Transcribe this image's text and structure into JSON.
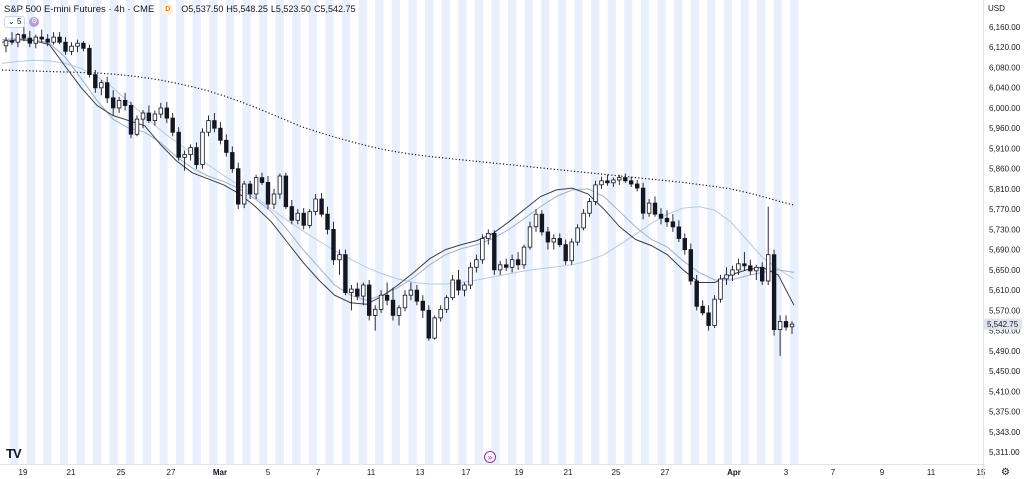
{
  "header": {
    "symbol": "S&P 500 E-mini Futures · 4h · CME",
    "exchange_badge": "D",
    "open": "O5,537.50",
    "high": "H5,548.25",
    "low": "L5,523.50",
    "close": "C5,542.75",
    "indicator_count": "5",
    "currency": "USD"
  },
  "colors": {
    "candle": "#131722",
    "session_band": "#e8f0fd",
    "ema_dark": "#3c3c46",
    "ema_light": "#9fb0cf",
    "ma_light": "#b7c8e8",
    "ma_dotted": "#131722",
    "price_label_bg": "#e0e3eb"
  },
  "chart_data": {
    "type": "candlestick",
    "title": "S&P 500 E-mini Futures · 4h · CME",
    "y_axis": {
      "ticks": [
        "6,160.00",
        "6,120.00",
        "6,080.00",
        "6,040.00",
        "6,000.00",
        "5,960.00",
        "5,910.00",
        "5,860.00",
        "5,810.00",
        "5,770.00",
        "5,730.00",
        "5,690.00",
        "5,650.00",
        "5,610.00",
        "5,570.00",
        "5,530.00",
        "5,490.00",
        "5,450.00",
        "5,410.00",
        "5,375.00",
        "5,343.00",
        "5,311.00"
      ],
      "tick_values": [
        6160,
        6120,
        6080,
        6040,
        6000,
        5960,
        5910,
        5860,
        5810,
        5770,
        5730,
        5690,
        5650,
        5610,
        5570,
        5530,
        5490,
        5450,
        5410,
        5375,
        5343,
        5311
      ],
      "current_price_label": "5,542.75",
      "current_price": 5542.75
    },
    "x_axis": {
      "labels": [
        "19",
        "21",
        "25",
        "27",
        "Mar",
        "5",
        "7",
        "11",
        "13",
        "17",
        "19",
        "21",
        "25",
        "27",
        "Apr",
        "3",
        "7",
        "9",
        "11",
        "15"
      ],
      "bold_labels": [
        "Mar",
        "Apr"
      ]
    },
    "candles": [
      [
        6123,
        6140,
        6110,
        6133
      ],
      [
        6133,
        6150,
        6125,
        6130
      ],
      [
        6130,
        6148,
        6120,
        6145
      ],
      [
        6145,
        6160,
        6132,
        6138
      ],
      [
        6138,
        6152,
        6120,
        6128
      ],
      [
        6128,
        6145,
        6118,
        6140
      ],
      [
        6140,
        6155,
        6130,
        6136
      ],
      [
        6136,
        6146,
        6122,
        6130
      ],
      [
        6130,
        6150,
        6125,
        6140
      ],
      [
        6140,
        6150,
        6126,
        6130
      ],
      [
        6130,
        6140,
        6105,
        6112
      ],
      [
        6112,
        6130,
        6104,
        6122
      ],
      [
        6122,
        6135,
        6110,
        6128
      ],
      [
        6128,
        6132,
        6112,
        6118
      ],
      [
        6118,
        6125,
        6060,
        6066
      ],
      [
        6066,
        6075,
        6030,
        6040
      ],
      [
        6040,
        6055,
        6025,
        6050
      ],
      [
        6050,
        6062,
        6010,
        6020
      ],
      [
        6020,
        6035,
        5985,
        6000
      ],
      [
        6000,
        6022,
        5990,
        6015
      ],
      [
        6015,
        6030,
        5995,
        6005
      ],
      [
        6005,
        6012,
        5935,
        5945
      ],
      [
        5945,
        5985,
        5940,
        5978
      ],
      [
        5978,
        5996,
        5960,
        5990
      ],
      [
        5990,
        6005,
        5970,
        5975
      ],
      [
        5975,
        5995,
        5965,
        5988
      ],
      [
        5988,
        6010,
        5980,
        6000
      ],
      [
        6000,
        6012,
        5970,
        5980
      ],
      [
        5980,
        5990,
        5940,
        5950
      ],
      [
        5950,
        5962,
        5880,
        5888
      ],
      [
        5888,
        5905,
        5855,
        5895
      ],
      [
        5895,
        5920,
        5880,
        5912
      ],
      [
        5912,
        5925,
        5860,
        5870
      ],
      [
        5870,
        5960,
        5860,
        5950
      ],
      [
        5950,
        5985,
        5940,
        5975
      ],
      [
        5975,
        5990,
        5950,
        5960
      ],
      [
        5960,
        5972,
        5920,
        5930
      ],
      [
        5930,
        5945,
        5890,
        5900
      ],
      [
        5900,
        5915,
        5850,
        5860
      ],
      [
        5860,
        5875,
        5770,
        5780
      ],
      [
        5780,
        5830,
        5772,
        5822
      ],
      [
        5822,
        5830,
        5790,
        5800
      ],
      [
        5800,
        5845,
        5790,
        5838
      ],
      [
        5838,
        5850,
        5820,
        5826
      ],
      [
        5826,
        5842,
        5770,
        5780
      ],
      [
        5780,
        5810,
        5770,
        5800
      ],
      [
        5800,
        5848,
        5790,
        5842
      ],
      [
        5842,
        5850,
        5770,
        5775
      ],
      [
        5775,
        5788,
        5740,
        5748
      ],
      [
        5748,
        5770,
        5740,
        5762
      ],
      [
        5762,
        5772,
        5730,
        5738
      ],
      [
        5738,
        5770,
        5732,
        5765
      ],
      [
        5765,
        5800,
        5758,
        5790
      ],
      [
        5790,
        5802,
        5755,
        5760
      ],
      [
        5760,
        5775,
        5720,
        5730
      ],
      [
        5730,
        5745,
        5660,
        5670
      ],
      [
        5670,
        5690,
        5640,
        5680
      ],
      [
        5680,
        5690,
        5600,
        5605
      ],
      [
        5605,
        5620,
        5570,
        5612
      ],
      [
        5612,
        5625,
        5590,
        5598
      ],
      [
        5598,
        5625,
        5580,
        5620
      ],
      [
        5620,
        5630,
        5550,
        5560
      ],
      [
        5560,
        5580,
        5530,
        5572
      ],
      [
        5572,
        5610,
        5565,
        5600
      ],
      [
        5600,
        5625,
        5580,
        5590
      ],
      [
        5590,
        5615,
        5550,
        5560
      ],
      [
        5560,
        5580,
        5540,
        5575
      ],
      [
        5575,
        5610,
        5568,
        5600
      ],
      [
        5600,
        5625,
        5590,
        5610
      ],
      [
        5610,
        5620,
        5580,
        5588
      ],
      [
        5588,
        5600,
        5555,
        5570
      ],
      [
        5570,
        5580,
        5510,
        5515
      ],
      [
        5515,
        5560,
        5512,
        5555
      ],
      [
        5555,
        5580,
        5548,
        5572
      ],
      [
        5572,
        5600,
        5565,
        5595
      ],
      [
        5595,
        5640,
        5590,
        5630
      ],
      [
        5630,
        5650,
        5600,
        5610
      ],
      [
        5610,
        5625,
        5598,
        5620
      ],
      [
        5620,
        5665,
        5612,
        5655
      ],
      [
        5655,
        5680,
        5645,
        5670
      ],
      [
        5670,
        5720,
        5662,
        5712
      ],
      [
        5712,
        5730,
        5700,
        5722
      ],
      [
        5722,
        5728,
        5640,
        5650
      ],
      [
        5650,
        5668,
        5640,
        5660
      ],
      [
        5660,
        5672,
        5648,
        5655
      ],
      [
        5655,
        5680,
        5645,
        5670
      ],
      [
        5670,
        5685,
        5650,
        5660
      ],
      [
        5660,
        5700,
        5652,
        5695
      ],
      [
        5695,
        5745,
        5690,
        5735
      ],
      [
        5735,
        5770,
        5725,
        5760
      ],
      [
        5760,
        5768,
        5718,
        5725
      ],
      [
        5725,
        5735,
        5690,
        5705
      ],
      [
        5705,
        5720,
        5690,
        5712
      ],
      [
        5712,
        5722,
        5695,
        5700
      ],
      [
        5700,
        5710,
        5660,
        5668
      ],
      [
        5668,
        5712,
        5660,
        5705
      ],
      [
        5705,
        5740,
        5698,
        5733
      ],
      [
        5733,
        5770,
        5728,
        5762
      ],
      [
        5762,
        5792,
        5755,
        5785
      ],
      [
        5785,
        5830,
        5778,
        5820
      ],
      [
        5820,
        5840,
        5810,
        5830
      ],
      [
        5830,
        5845,
        5818,
        5825
      ],
      [
        5825,
        5838,
        5815,
        5832
      ],
      [
        5832,
        5845,
        5820,
        5838
      ],
      [
        5838,
        5848,
        5825,
        5830
      ],
      [
        5830,
        5840,
        5815,
        5822
      ],
      [
        5822,
        5832,
        5805,
        5812
      ],
      [
        5812,
        5825,
        5750,
        5762
      ],
      [
        5762,
        5790,
        5755,
        5782
      ],
      [
        5782,
        5795,
        5755,
        5760
      ],
      [
        5760,
        5772,
        5740,
        5752
      ],
      [
        5752,
        5768,
        5735,
        5745
      ],
      [
        5745,
        5760,
        5725,
        5735
      ],
      [
        5735,
        5748,
        5705,
        5712
      ],
      [
        5712,
        5722,
        5680,
        5690
      ],
      [
        5690,
        5702,
        5620,
        5628
      ],
      [
        5628,
        5640,
        5570,
        5578
      ],
      [
        5578,
        5590,
        5560,
        5565
      ],
      [
        5565,
        5580,
        5530,
        5540
      ],
      [
        5540,
        5600,
        5535,
        5592
      ],
      [
        5592,
        5640,
        5585,
        5632
      ],
      [
        5632,
        5655,
        5620,
        5640
      ],
      [
        5640,
        5658,
        5628,
        5650
      ],
      [
        5650,
        5672,
        5640,
        5662
      ],
      [
        5662,
        5685,
        5648,
        5658
      ],
      [
        5658,
        5670,
        5640,
        5648
      ],
      [
        5648,
        5660,
        5630,
        5655
      ],
      [
        5655,
        5665,
        5620,
        5628
      ],
      [
        5628,
        5775,
        5620,
        5680
      ],
      [
        5680,
        5690,
        5520,
        5532
      ],
      [
        5532,
        5560,
        5480,
        5548
      ],
      [
        5548,
        5560,
        5530,
        5537
      ],
      [
        5537.5,
        5548.25,
        5523.5,
        5542.75
      ]
    ],
    "moving_averages": [
      {
        "style": "dotted-dark",
        "values": [
          6075,
          6074,
          6073,
          6072,
          6071,
          6070,
          6069,
          6067,
          6064,
          6060,
          6055,
          6049,
          6042,
          6034,
          6024,
          6013,
          6001,
          5988,
          5975,
          5962,
          5950,
          5938,
          5927,
          5917,
          5908,
          5901,
          5895,
          5890,
          5886,
          5882,
          5878,
          5874,
          5870,
          5866,
          5862,
          5858,
          5854,
          5850,
          5846,
          5842,
          5838,
          5834,
          5830,
          5826,
          5821,
          5816,
          5810,
          5803,
          5795,
          5786,
          5778
        ]
      },
      {
        "style": "light",
        "values": [
          6088,
          6092,
          6094,
          6093,
          6088,
          6078,
          6062,
          6040,
          6012,
          5984,
          5955,
          5926,
          5898,
          5870,
          5843,
          5818,
          5794,
          5770,
          5748,
          5727,
          5707,
          5688,
          5671,
          5655,
          5642,
          5632,
          5625,
          5622,
          5622,
          5625,
          5630,
          5636,
          5642,
          5648,
          5652,
          5656,
          5660,
          5668,
          5680,
          5700,
          5720,
          5742,
          5760,
          5772,
          5775,
          5768,
          5745,
          5710,
          5675,
          5652,
          5632
        ]
      },
      {
        "style": "medium",
        "values": [
          6135,
          6137,
          6135,
          6128,
          6100,
          6058,
          6015,
          5978,
          5960,
          5950,
          5925,
          5890,
          5862,
          5842,
          5828,
          5810,
          5790,
          5765,
          5730,
          5690,
          5655,
          5620,
          5600,
          5590,
          5600,
          5615,
          5635,
          5660,
          5680,
          5692,
          5700,
          5712,
          5730,
          5752,
          5775,
          5795,
          5808,
          5810,
          5795,
          5765,
          5735,
          5710,
          5695,
          5668,
          5645,
          5630,
          5630,
          5638,
          5645,
          5650,
          5645
        ]
      },
      {
        "style": "dark",
        "values": [
          6130,
          6135,
          6133,
          6125,
          6082,
          6040,
          6005,
          5985,
          5975,
          5965,
          5920,
          5880,
          5850,
          5835,
          5820,
          5800,
          5775,
          5745,
          5705,
          5665,
          5630,
          5600,
          5585,
          5582,
          5598,
          5620,
          5645,
          5672,
          5690,
          5700,
          5708,
          5722,
          5745,
          5770,
          5795,
          5808,
          5812,
          5800,
          5770,
          5735,
          5710,
          5698,
          5680,
          5650,
          5625,
          5625,
          5640,
          5650,
          5655,
          5640,
          5580
        ]
      }
    ]
  }
}
